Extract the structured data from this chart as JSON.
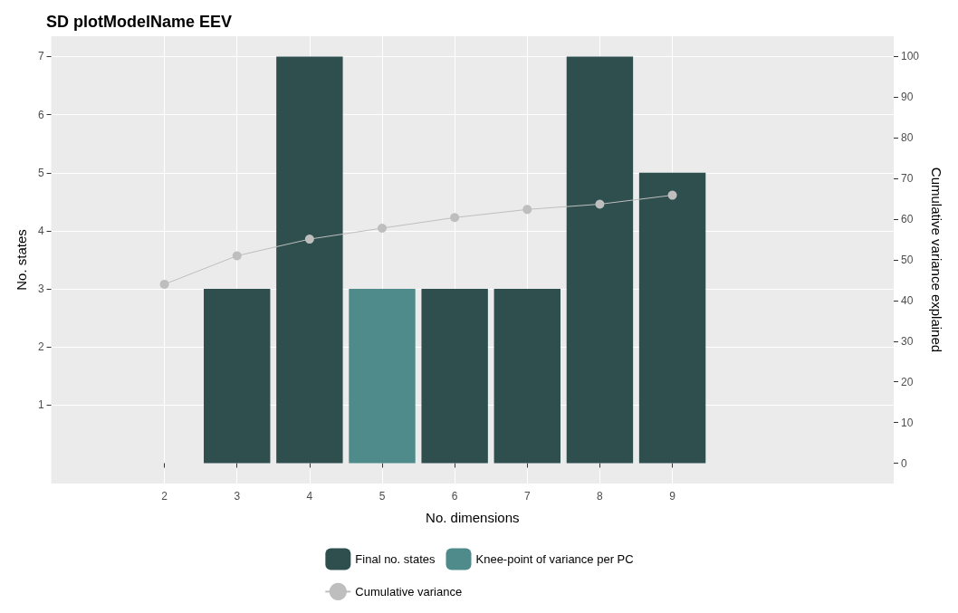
{
  "chart_data": {
    "type": "bar",
    "title": "SD plotModelName EEV",
    "xlabel": "No. dimensions",
    "ylabel": "No. states",
    "y2label": "Cumulative variance explained",
    "series": [
      {
        "name": "Final no. states",
        "color": "#2f4f4f",
        "x": [
          3,
          4,
          6,
          7,
          8,
          9
        ],
        "values": [
          3,
          7,
          3,
          3,
          7,
          5
        ]
      },
      {
        "name": "Knee-point of variance per PC",
        "color": "#4f8b8b",
        "x": [
          5
        ],
        "values": [
          3
        ]
      },
      {
        "name": "Cumulative variance",
        "type": "line",
        "axis": "y2",
        "color": "#bebebe",
        "x": [
          2,
          3,
          4,
          5,
          6,
          7,
          8,
          9
        ],
        "values": [
          44.0,
          51.0,
          55.1,
          57.8,
          60.4,
          62.4,
          63.7,
          65.9
        ]
      }
    ],
    "xlim": [
      0.44,
      12.05
    ],
    "xticks": [
      2,
      3,
      4,
      5,
      6,
      7,
      8,
      9
    ],
    "ylim": [
      -0.35,
      7.35
    ],
    "yticks": [
      1,
      2,
      3,
      4,
      5,
      6,
      7
    ],
    "y2lim": [
      -5,
      105
    ],
    "y2ticks": [
      0,
      10,
      20,
      30,
      40,
      50,
      60,
      70,
      80,
      90,
      100
    ],
    "grid": true,
    "legend": "bottom",
    "marker": "circle",
    "line_style": "solid"
  }
}
